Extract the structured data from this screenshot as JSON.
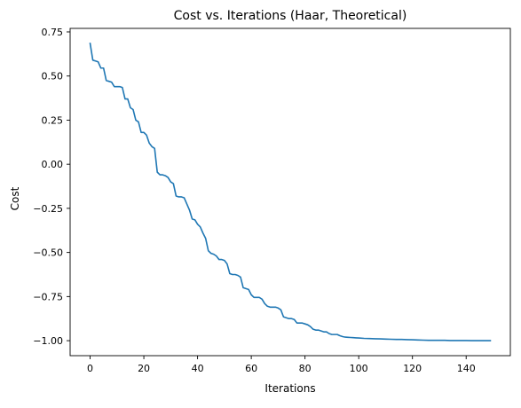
{
  "chart_data": {
    "type": "line",
    "title": "Cost vs. Iterations (Haar, Theoretical)",
    "xlabel": "Iterations",
    "ylabel": "Cost",
    "xlim": [
      -7.45,
      156.45
    ],
    "ylim": [
      -1.085,
      0.77
    ],
    "xticks": [
      0,
      20,
      40,
      60,
      80,
      100,
      120,
      140
    ],
    "xtick_labels": [
      "0",
      "20",
      "40",
      "60",
      "80",
      "100",
      "120",
      "140"
    ],
    "yticks": [
      0.75,
      0.5,
      0.25,
      0.0,
      -0.25,
      -0.5,
      -0.75,
      -1.0
    ],
    "ytick_labels": [
      "0.75",
      "0.50",
      "0.25",
      "0.00",
      "−0.25",
      "−0.50",
      "−0.75",
      "−1.00"
    ],
    "grid": false,
    "legend": "none",
    "series": [
      {
        "color": "#1f77b4",
        "x": [
          0,
          1,
          2,
          3,
          4,
          5,
          6,
          7,
          8,
          9,
          10,
          11,
          12,
          13,
          14,
          15,
          16,
          17,
          18,
          19,
          20,
          21,
          22,
          23,
          24,
          25,
          26,
          27,
          28,
          29,
          30,
          31,
          32,
          33,
          34,
          35,
          36,
          37,
          38,
          39,
          40,
          41,
          42,
          43,
          44,
          45,
          46,
          47,
          48,
          49,
          50,
          51,
          52,
          53,
          54,
          55,
          56,
          57,
          58,
          59,
          60,
          61,
          62,
          63,
          64,
          65,
          66,
          67,
          68,
          69,
          70,
          71,
          72,
          73,
          74,
          75,
          76,
          77,
          78,
          79,
          80,
          81,
          82,
          83,
          84,
          85,
          86,
          87,
          88,
          89,
          90,
          91,
          92,
          93,
          94,
          95,
          96,
          97,
          98,
          99,
          100,
          102,
          104,
          106,
          108,
          110,
          112,
          114,
          116,
          118,
          120,
          122,
          124,
          126,
          128,
          130,
          132,
          134,
          136,
          138,
          140,
          142,
          144,
          146,
          148,
          149
        ],
        "y": [
          0.685,
          0.59,
          0.585,
          0.58,
          0.545,
          0.545,
          0.475,
          0.47,
          0.465,
          0.44,
          0.44,
          0.44,
          0.435,
          0.37,
          0.37,
          0.32,
          0.31,
          0.25,
          0.24,
          0.18,
          0.18,
          0.165,
          0.12,
          0.1,
          0.09,
          -0.045,
          -0.06,
          -0.06,
          -0.065,
          -0.075,
          -0.1,
          -0.11,
          -0.18,
          -0.185,
          -0.185,
          -0.19,
          -0.225,
          -0.26,
          -0.31,
          -0.315,
          -0.34,
          -0.355,
          -0.39,
          -0.42,
          -0.49,
          -0.505,
          -0.51,
          -0.52,
          -0.54,
          -0.54,
          -0.545,
          -0.565,
          -0.62,
          -0.625,
          -0.625,
          -0.63,
          -0.64,
          -0.7,
          -0.705,
          -0.71,
          -0.74,
          -0.755,
          -0.755,
          -0.755,
          -0.765,
          -0.79,
          -0.805,
          -0.81,
          -0.81,
          -0.81,
          -0.815,
          -0.825,
          -0.865,
          -0.87,
          -0.875,
          -0.875,
          -0.88,
          -0.9,
          -0.9,
          -0.9,
          -0.905,
          -0.91,
          -0.92,
          -0.935,
          -0.94,
          -0.94,
          -0.945,
          -0.95,
          -0.95,
          -0.96,
          -0.965,
          -0.965,
          -0.965,
          -0.972,
          -0.977,
          -0.98,
          -0.981,
          -0.982,
          -0.983,
          -0.984,
          -0.985,
          -0.987,
          -0.988,
          -0.989,
          -0.99,
          -0.991,
          -0.992,
          -0.993,
          -0.993,
          -0.994,
          -0.995,
          -0.996,
          -0.997,
          -0.998,
          -0.998,
          -0.998,
          -0.998,
          -0.999,
          -0.999,
          -0.999,
          -0.999,
          -1.0,
          -1.0,
          -1.0,
          -1.0,
          -1.0
        ]
      }
    ]
  }
}
